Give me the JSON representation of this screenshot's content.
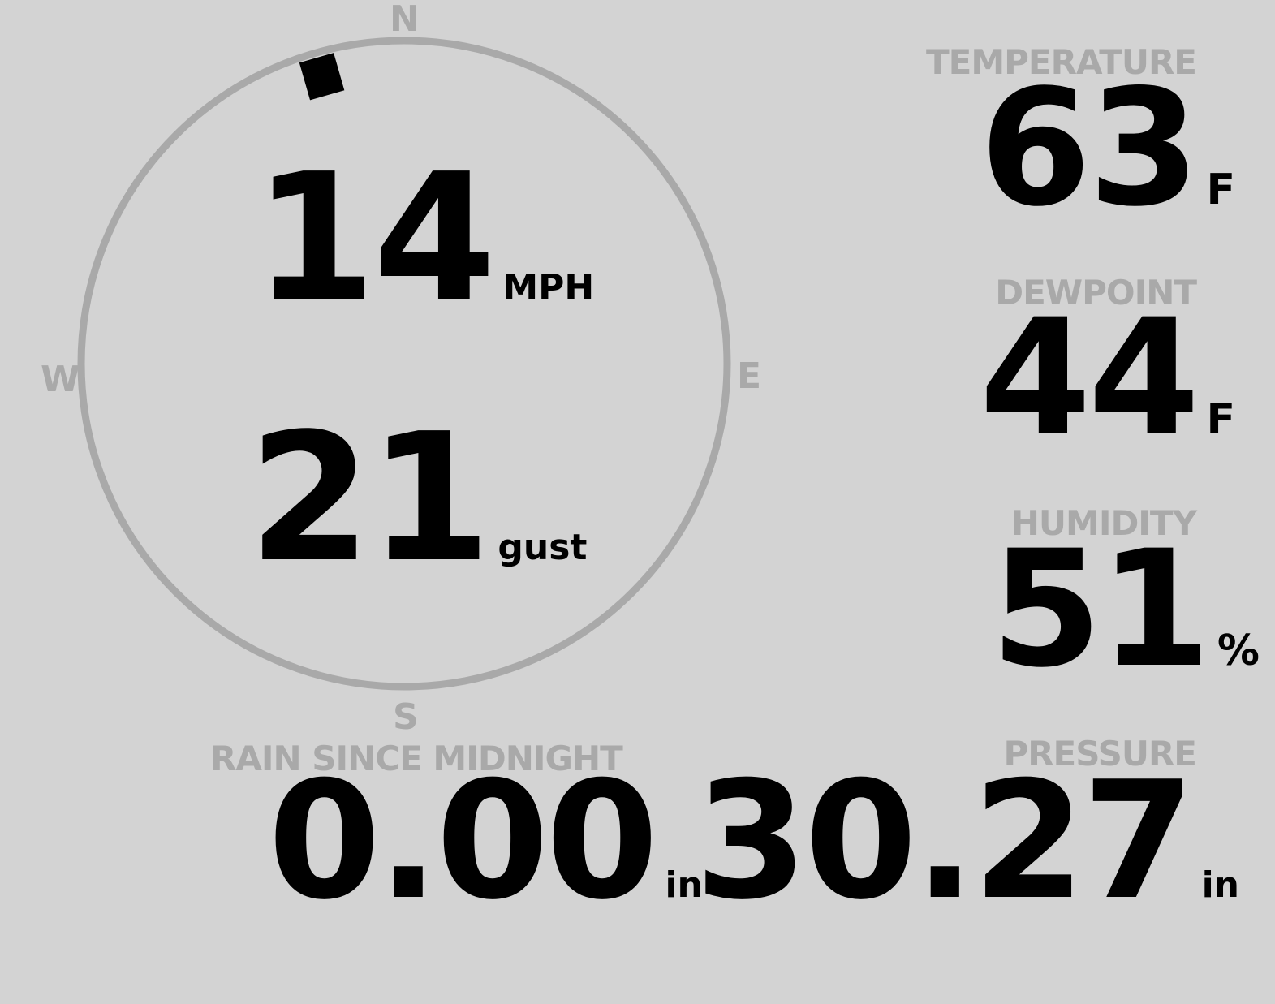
{
  "wind": {
    "compass": {
      "north": "N",
      "south": "S",
      "east": "E",
      "west": "W"
    },
    "direction_degrees": 344,
    "speed": "14",
    "speed_unit": "MPH",
    "gust": "21",
    "gust_unit": "gust"
  },
  "temperature": {
    "label": "TEMPERATURE",
    "value": "63",
    "unit": "F"
  },
  "dewpoint": {
    "label": "DEWPOINT",
    "value": "44",
    "unit": "F"
  },
  "humidity": {
    "label": "HUMIDITY",
    "value": "51",
    "unit": "%"
  },
  "rain": {
    "label": "RAIN SINCE MIDNIGHT",
    "value": "0.00",
    "unit": "in"
  },
  "pressure": {
    "label": "PRESSURE",
    "value": "30.27",
    "unit": "in"
  },
  "colors": {
    "background": "#d3d3d3",
    "label": "#a9a9a9",
    "value": "#000000",
    "ring": "#a9a9a9"
  }
}
